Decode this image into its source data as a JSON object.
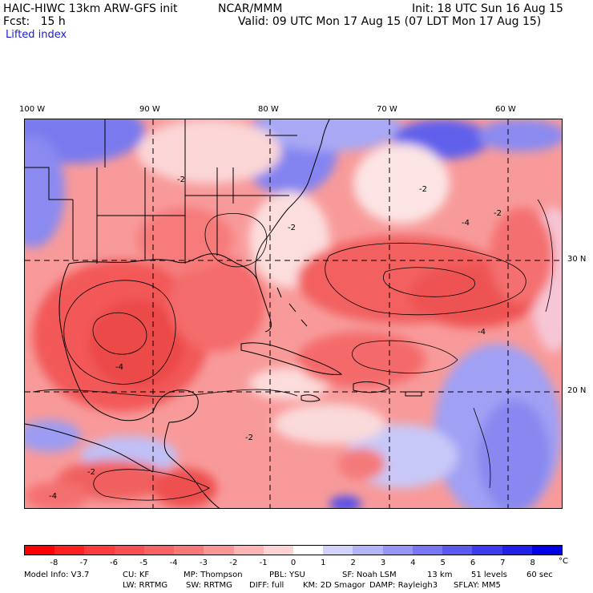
{
  "header": {
    "model_title": "HAIC-HIWC 13km ARW-GFS init",
    "org": "NCAR/MMM",
    "init": "Init: 18 UTC Sun 16 Aug 15",
    "fcst": "Fcst:   15 h",
    "valid": "Valid: 09 UTC Mon 17 Aug 15 (07 LDT Mon 17 Aug 15)",
    "field": "Lifted index"
  },
  "map": {
    "lon_labels": [
      "100 W",
      "90 W",
      "80 W",
      "70 W",
      "60 W"
    ],
    "lat_labels": [
      "30 N",
      "20 N"
    ],
    "contour_labels": [
      "-2",
      "-4",
      "-2",
      "-2",
      "-4",
      "-2",
      "-4",
      "-2",
      "-2",
      "-4"
    ]
  },
  "colorbar": {
    "unit": "°C",
    "labels": [
      "-8",
      "-7",
      "-6",
      "-5",
      "-4",
      "-3",
      "-2",
      "-1",
      "0",
      "1",
      "2",
      "3",
      "4",
      "5",
      "6",
      "7",
      "8"
    ],
    "colors": [
      "#ff0000",
      "#ff2020",
      "#ff3c3c",
      "#f85050",
      "#f86464",
      "#f87878",
      "#f89696",
      "#fab4b4",
      "#fcd2d2",
      "#ffffff",
      "#d2d2fa",
      "#b4b4f8",
      "#9696f6",
      "#7878f4",
      "#5a5af0",
      "#3c3cee",
      "#2020ea",
      "#0000e6"
    ]
  },
  "model_info": {
    "line1": [
      "Model Info: V3.7",
      "CU: KF",
      "MP: Thompson",
      "PBL: YSU",
      "SF: Noah LSM",
      "13 km",
      "51 levels",
      "60 sec"
    ],
    "line2": [
      "LW: RRTMG",
      "SW: RRTMG",
      "DIFF: full",
      "KM: 2D Smagor",
      "DAMP: Rayleigh3",
      "SFLAY: MM5"
    ]
  }
}
